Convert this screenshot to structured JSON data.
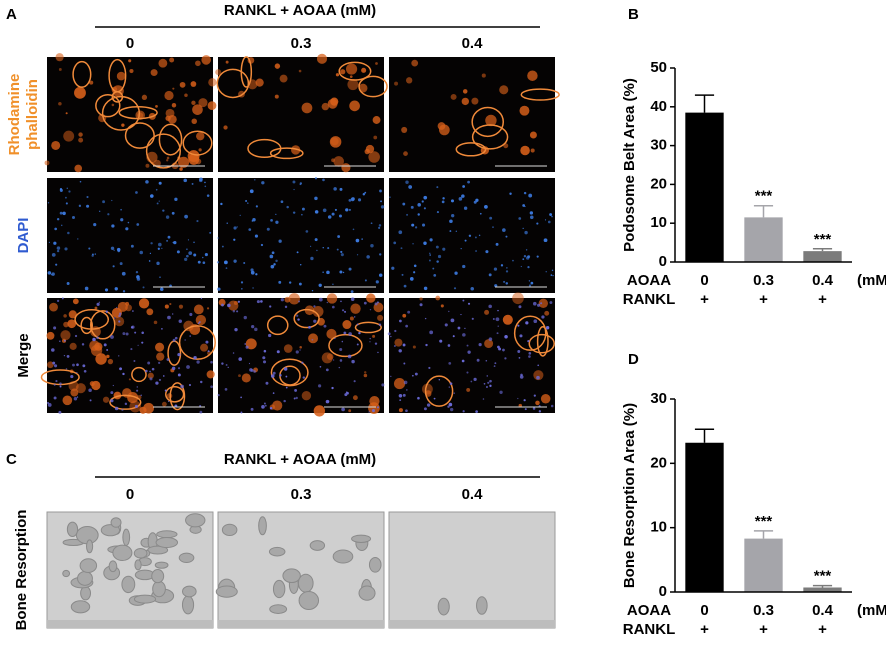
{
  "panel_a": {
    "letter": "A",
    "title": "RANKL + AOAA (mM)",
    "columns": [
      "0",
      "0.3",
      "0.4"
    ],
    "rows": [
      [
        "Rhodamine",
        "phalloidin"
      ],
      [
        "DAPI"
      ],
      [
        "Merge"
      ]
    ]
  },
  "panel_c": {
    "letter": "C",
    "title": "RANKL + AOAA (mM)",
    "columns": [
      "0",
      "0.3",
      "0.4"
    ],
    "row": "Bone Resorption"
  },
  "chart_data": [
    {
      "type": "bar",
      "panel": "B",
      "y_label": "Podosome Belt Area (%)",
      "categories": [
        "0",
        "0.3",
        "0.4"
      ],
      "values": [
        38.5,
        11.5,
        2.8
      ],
      "errors": [
        4.5,
        3,
        0.6
      ],
      "colors": [
        "#000000",
        "#a5a5aa",
        "#7b7b7b"
      ],
      "significance": [
        null,
        "***",
        "***"
      ],
      "ylim": [
        0,
        50
      ],
      "yticks": [
        0,
        10,
        20,
        30,
        40,
        50
      ],
      "row_labels": [
        "AOAA",
        "RANKL"
      ],
      "rankl": [
        "+",
        "+",
        "+"
      ],
      "unit": "(mM)"
    },
    {
      "type": "bar",
      "panel": "D",
      "y_label": "Bone Resorption Area (%)",
      "categories": [
        "0",
        "0.3",
        "0.4"
      ],
      "values": [
        23.2,
        8.3,
        0.7
      ],
      "errors": [
        2.1,
        1.2,
        0.3
      ],
      "colors": [
        "#000000",
        "#a5a5aa",
        "#7b7b7b"
      ],
      "significance": [
        null,
        "***",
        "***"
      ],
      "ylim": [
        0,
        30
      ],
      "yticks": [
        0,
        10,
        20,
        30
      ],
      "row_labels": [
        "AOAA",
        "RANKL"
      ],
      "rankl": [
        "+",
        "+",
        "+"
      ],
      "unit": "(mM)"
    }
  ]
}
